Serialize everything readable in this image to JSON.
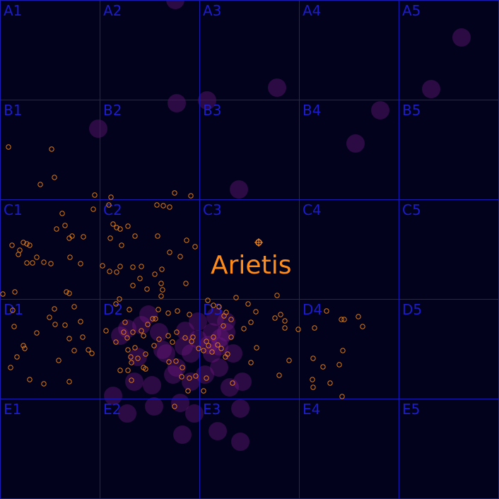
{
  "map": {
    "rows": [
      "A",
      "B",
      "C",
      "D",
      "E"
    ],
    "columns": [
      "1",
      "2",
      "3",
      "4",
      "5"
    ],
    "cell_labels": [
      "A1",
      "A2",
      "A3",
      "A4",
      "A5",
      "B1",
      "B2",
      "B3",
      "B4",
      "B5",
      "C1",
      "C2",
      "C3",
      "C4",
      "C5",
      "D1",
      "D2",
      "D3",
      "D4",
      "D5",
      "E1",
      "E2",
      "E3",
      "E4",
      "E5"
    ],
    "background_color": "#02021c",
    "grid_color": "#1a1ab4",
    "label_color": "#1c1ccc"
  },
  "selected_star": {
    "name": "Arietis",
    "color": "#ff8c1a",
    "icon": "star-marker-icon"
  },
  "star_color": "#e07a10",
  "nebula_color": "#7a1a8c"
}
